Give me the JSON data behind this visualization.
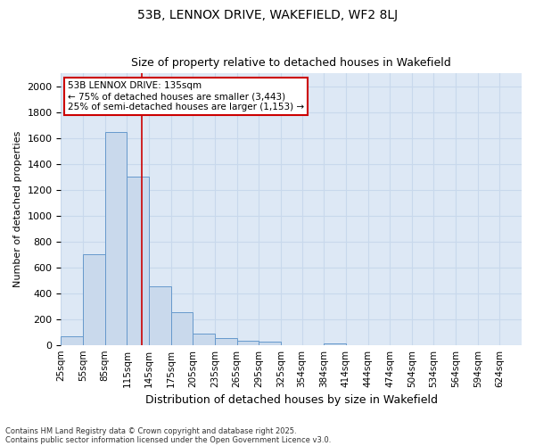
{
  "title_line1": "53B, LENNOX DRIVE, WAKEFIELD, WF2 8LJ",
  "title_line2": "Size of property relative to detached houses in Wakefield",
  "xlabel": "Distribution of detached houses by size in Wakefield",
  "ylabel": "Number of detached properties",
  "bin_labels": [
    "25sqm",
    "55sqm",
    "85sqm",
    "115sqm",
    "145sqm",
    "175sqm",
    "205sqm",
    "235sqm",
    "265sqm",
    "295sqm",
    "325sqm",
    "354sqm",
    "384sqm",
    "414sqm",
    "444sqm",
    "474sqm",
    "504sqm",
    "534sqm",
    "564sqm",
    "594sqm",
    "624sqm"
  ],
  "bin_edges": [
    25,
    55,
    85,
    115,
    145,
    175,
    205,
    235,
    265,
    295,
    325,
    354,
    384,
    414,
    444,
    474,
    504,
    534,
    564,
    594,
    624
  ],
  "bar_heights": [
    70,
    700,
    1650,
    1300,
    450,
    250,
    90,
    55,
    30,
    25,
    0,
    0,
    15,
    0,
    0,
    0,
    0,
    0,
    0,
    0
  ],
  "bar_color": "#c9d9ec",
  "bar_edge_color": "#6699cc",
  "grid_color": "#c8d8ec",
  "background_color": "#dde8f5",
  "fig_background": "#ffffff",
  "red_line_x": 135,
  "annotation_title": "53B LENNOX DRIVE: 135sqm",
  "annotation_line1": "← 75% of detached houses are smaller (3,443)",
  "annotation_line2": "25% of semi-detached houses are larger (1,153) →",
  "annotation_box_color": "#ffffff",
  "annotation_border_color": "#cc0000",
  "red_line_color": "#cc0000",
  "ylim": [
    0,
    2100
  ],
  "yticks": [
    0,
    200,
    400,
    600,
    800,
    1000,
    1200,
    1400,
    1600,
    1800,
    2000
  ],
  "footnote_line1": "Contains HM Land Registry data © Crown copyright and database right 2025.",
  "footnote_line2": "Contains public sector information licensed under the Open Government Licence v3.0."
}
